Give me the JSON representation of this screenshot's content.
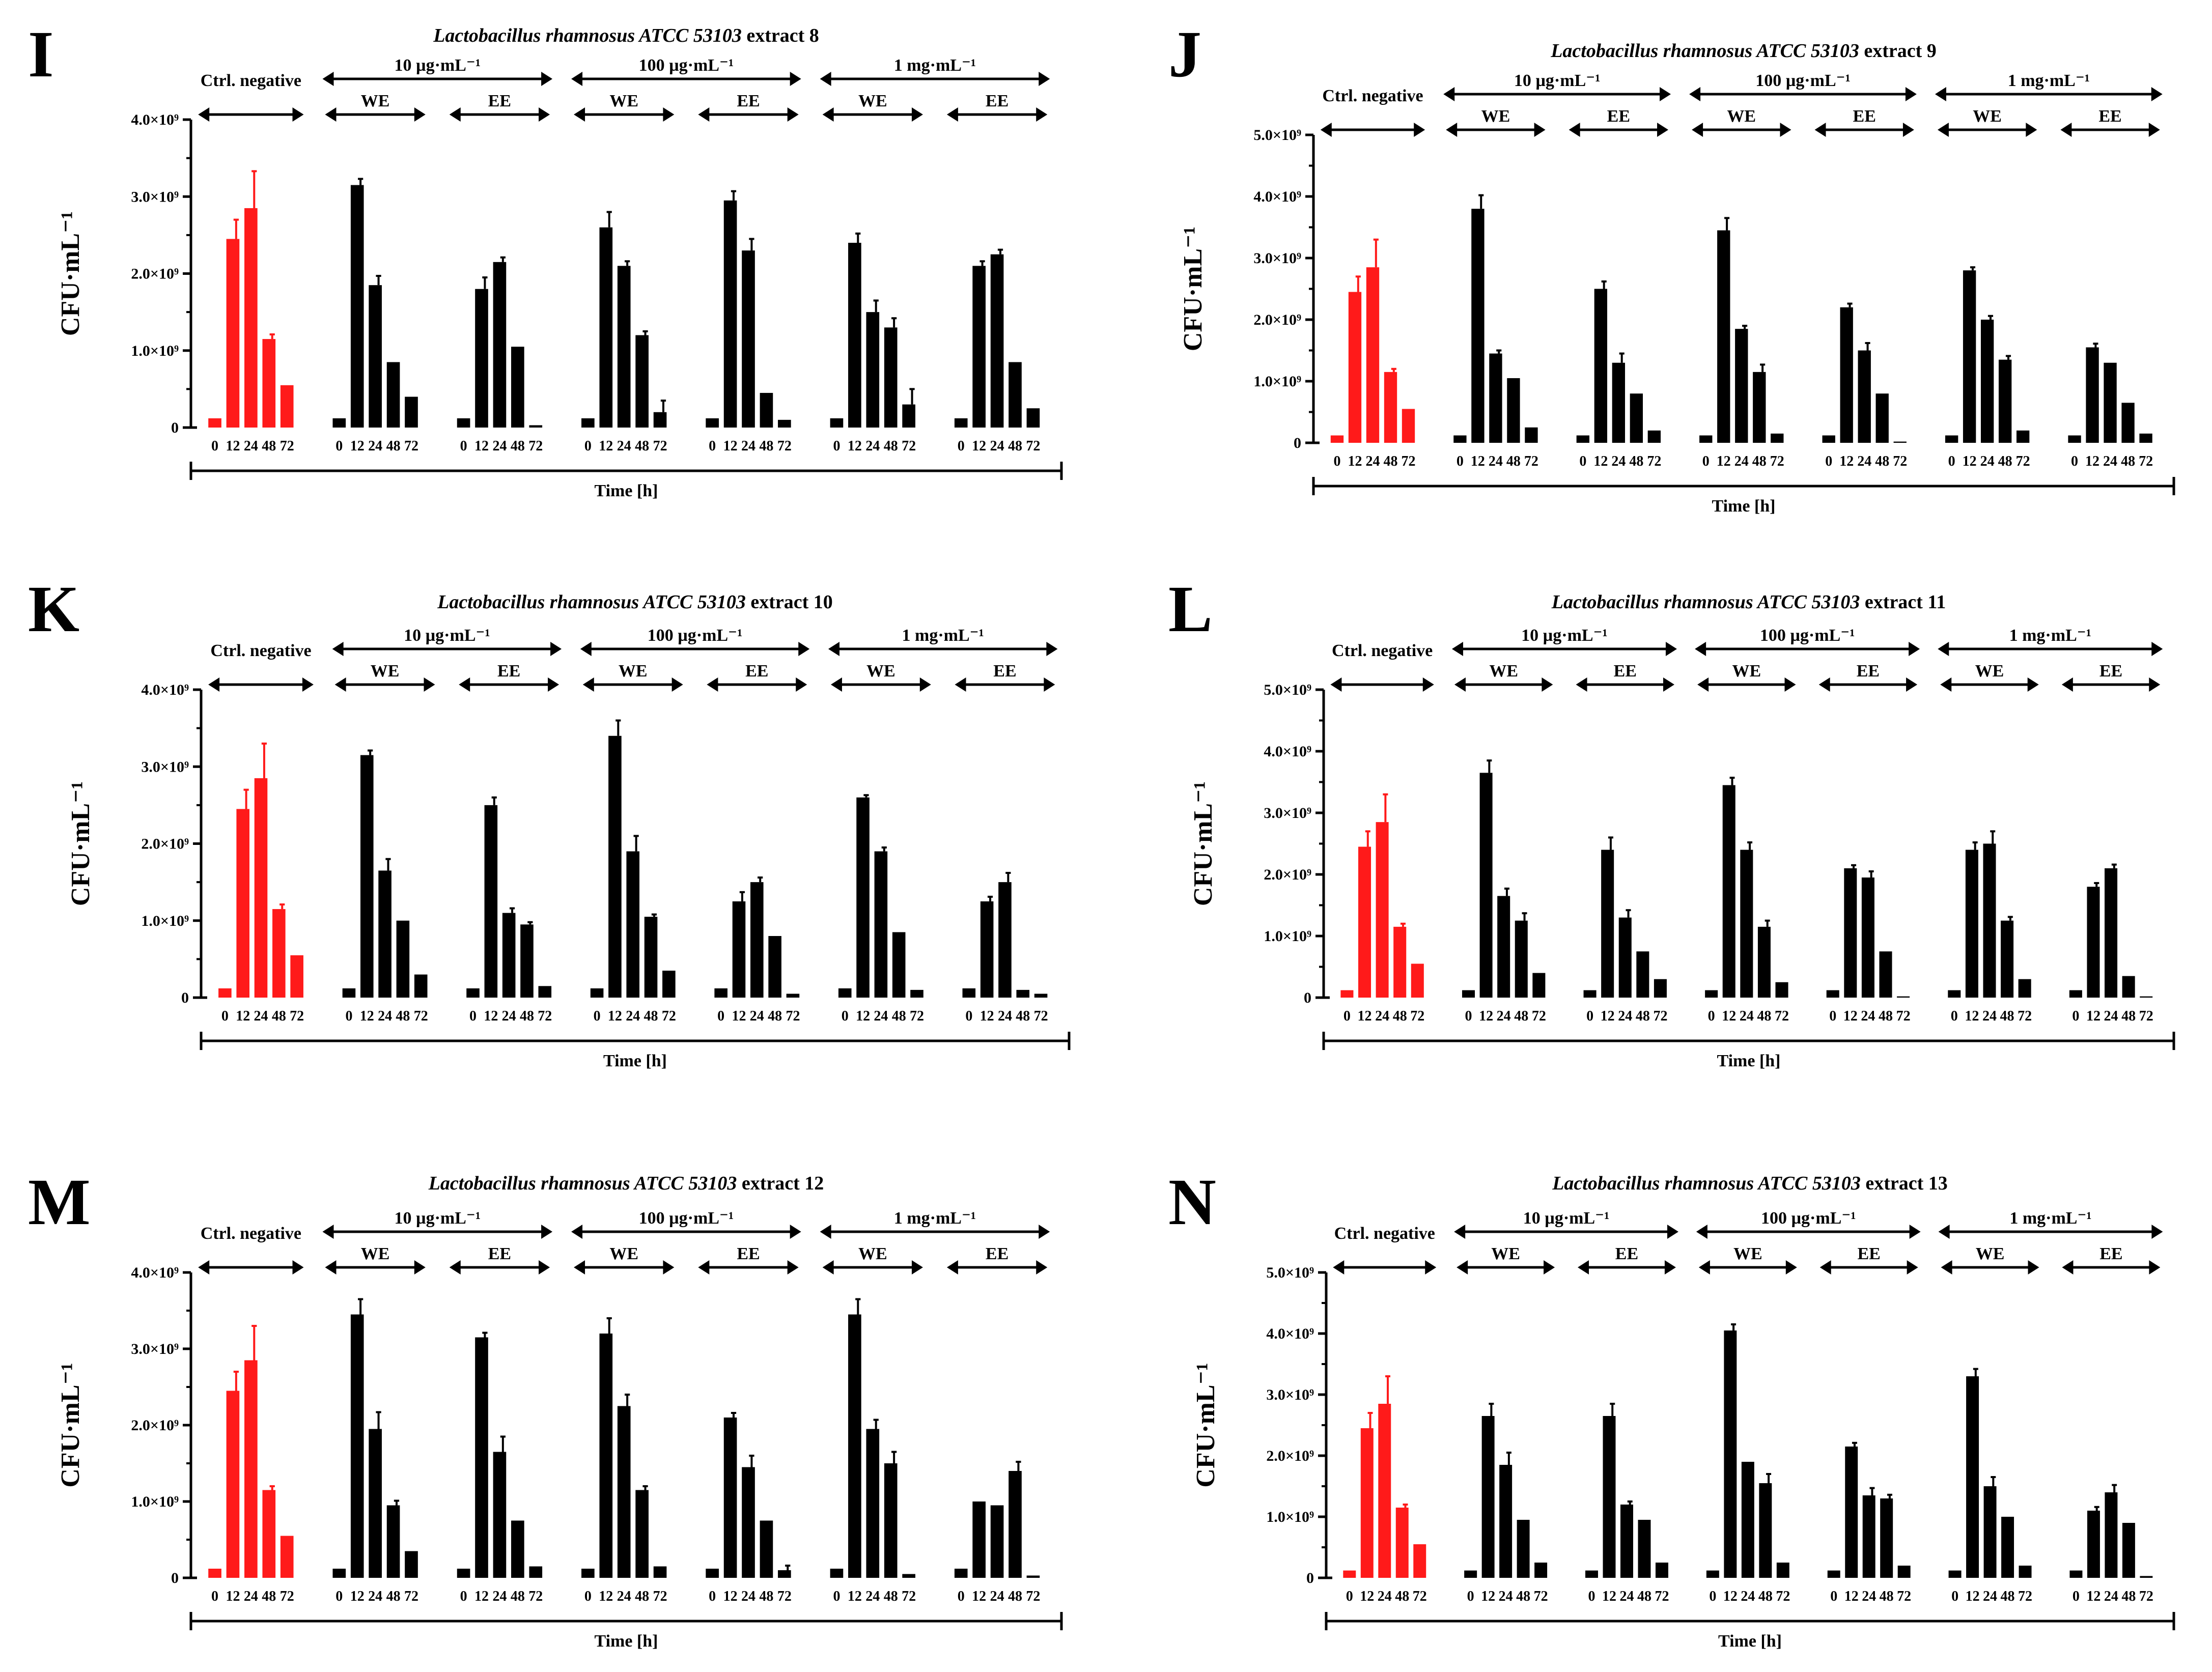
{
  "colors": {
    "control": "#ff1a1a",
    "treatment": "#000000"
  },
  "chart_data": [
    {
      "type": "bar",
      "panel": "I",
      "title_species": "Lactobacillus rhamnosus ATCC 53103",
      "title_extract": "extract 8",
      "ylabel": "CFU·mL⁻¹",
      "xlabel": "Time [h]",
      "ylim": [
        0,
        4000000000.0
      ],
      "yticks": [
        "0",
        "1.0×10⁹",
        "2.0×10⁹",
        "3.0×10⁹",
        "4.0×10⁹"
      ],
      "categories": [
        "0",
        "12",
        "24",
        "48",
        "72"
      ],
      "control_label": "Ctrl. negative",
      "groups": [
        "10 µg·mL⁻¹",
        "100 µg·mL⁻¹",
        "1 mg·mL⁻¹"
      ],
      "subgroups": [
        "WE",
        "EE"
      ],
      "series": [
        {
          "name": "Ctrl. negative",
          "values": [
            0.12,
            2.45,
            2.85,
            1.15,
            0.55
          ],
          "errors": [
            0,
            0.25,
            0.48,
            0.06,
            0
          ]
        },
        {
          "name": "10 µg·mL⁻¹ WE",
          "values": [
            0.12,
            3.15,
            1.85,
            0.85,
            0.4
          ],
          "errors": [
            0,
            0.08,
            0.12,
            0,
            0
          ]
        },
        {
          "name": "10 µg·mL⁻¹ EE",
          "values": [
            0.12,
            1.8,
            2.15,
            1.05,
            0.03
          ],
          "errors": [
            0,
            0.15,
            0.06,
            0,
            0
          ]
        },
        {
          "name": "100 µg·mL⁻¹ WE",
          "values": [
            0.12,
            2.6,
            2.1,
            1.2,
            0.2
          ],
          "errors": [
            0,
            0.2,
            0.06,
            0.05,
            0.15
          ]
        },
        {
          "name": "100 µg·mL⁻¹ EE",
          "values": [
            0.12,
            2.95,
            2.3,
            0.45,
            0.1
          ],
          "errors": [
            0,
            0.12,
            0.15,
            0,
            0
          ]
        },
        {
          "name": "1 mg·mL⁻¹ WE",
          "values": [
            0.12,
            2.4,
            1.5,
            1.3,
            0.3
          ],
          "errors": [
            0,
            0.12,
            0.15,
            0.12,
            0.2
          ]
        },
        {
          "name": "1 mg·mL⁻¹ EE",
          "values": [
            0.12,
            2.1,
            2.25,
            0.85,
            0.25
          ],
          "errors": [
            0,
            0.06,
            0.06,
            0,
            0
          ]
        }
      ]
    },
    {
      "type": "bar",
      "panel": "J",
      "title_species": "Lactobacillus rhamnosus ATCC 53103",
      "title_extract": "extract 9",
      "ylabel": "CFU·mL⁻¹",
      "xlabel": "Time [h]",
      "ylim": [
        0,
        5000000000.0
      ],
      "yticks": [
        "0",
        "1.0×10⁹",
        "2.0×10⁹",
        "3.0×10⁹",
        "4.0×10⁹",
        "5.0×10⁹"
      ],
      "categories": [
        "0",
        "12",
        "24",
        "48",
        "72"
      ],
      "control_label": "Ctrl. negative",
      "groups": [
        "10 µg·mL⁻¹",
        "100 µg·mL⁻¹",
        "1 mg·mL⁻¹"
      ],
      "subgroups": [
        "WE",
        "EE"
      ],
      "series": [
        {
          "name": "Ctrl. negative",
          "values": [
            0.12,
            2.45,
            2.85,
            1.15,
            0.55
          ],
          "errors": [
            0,
            0.25,
            0.45,
            0.05,
            0
          ]
        },
        {
          "name": "10 µg·mL⁻¹ WE",
          "values": [
            0.12,
            3.8,
            1.45,
            1.05,
            0.25
          ],
          "errors": [
            0,
            0.22,
            0.05,
            0,
            0
          ]
        },
        {
          "name": "10 µg·mL⁻¹ EE",
          "values": [
            0.12,
            2.5,
            1.3,
            0.8,
            0.2
          ],
          "errors": [
            0,
            0.12,
            0.15,
            0,
            0
          ]
        },
        {
          "name": "100 µg·mL⁻¹ WE",
          "values": [
            0.12,
            3.45,
            1.85,
            1.15,
            0.15
          ],
          "errors": [
            0,
            0.2,
            0.05,
            0.12,
            0
          ]
        },
        {
          "name": "100 µg·mL⁻¹ EE",
          "values": [
            0.12,
            2.2,
            1.5,
            0.8,
            0.02
          ],
          "errors": [
            0,
            0.06,
            0.12,
            0,
            0
          ]
        },
        {
          "name": "1 mg·mL⁻¹ WE",
          "values": [
            0.12,
            2.8,
            2.0,
            1.35,
            0.2
          ],
          "errors": [
            0,
            0.05,
            0.06,
            0.06,
            0
          ]
        },
        {
          "name": "1 mg·mL⁻¹ EE",
          "values": [
            0.12,
            1.55,
            1.3,
            0.65,
            0.15
          ],
          "errors": [
            0,
            0.06,
            0,
            0,
            0
          ]
        }
      ]
    },
    {
      "type": "bar",
      "panel": "K",
      "title_species": "Lactobacillus rhamnosus ATCC 53103",
      "title_extract": "extract 10",
      "ylabel": "CFU·mL⁻¹",
      "xlabel": "Time [h]",
      "ylim": [
        0,
        4000000000.0
      ],
      "yticks": [
        "0",
        "1.0×10⁹",
        "2.0×10⁹",
        "3.0×10⁹",
        "4.0×10⁹"
      ],
      "categories": [
        "0",
        "12",
        "24",
        "48",
        "72"
      ],
      "control_label": "Ctrl. negative",
      "groups": [
        "10 µg·mL⁻¹",
        "100 µg·mL⁻¹",
        "1 mg·mL⁻¹"
      ],
      "subgroups": [
        "WE",
        "EE"
      ],
      "series": [
        {
          "name": "Ctrl. negative",
          "values": [
            0.12,
            2.45,
            2.85,
            1.15,
            0.55
          ],
          "errors": [
            0,
            0.25,
            0.45,
            0.06,
            0
          ]
        },
        {
          "name": "10 µg·mL⁻¹ WE",
          "values": [
            0.12,
            3.15,
            1.65,
            1.0,
            0.3
          ],
          "errors": [
            0,
            0.06,
            0.15,
            0,
            0
          ]
        },
        {
          "name": "10 µg·mL⁻¹ EE",
          "values": [
            0.12,
            2.5,
            1.1,
            0.95,
            0.15
          ],
          "errors": [
            0,
            0.1,
            0.06,
            0.03,
            0
          ]
        },
        {
          "name": "100 µg·mL⁻¹ WE",
          "values": [
            0.12,
            3.4,
            1.9,
            1.05,
            0.35
          ],
          "errors": [
            0,
            0.2,
            0.2,
            0.03,
            0
          ]
        },
        {
          "name": "100 µg·mL⁻¹ EE",
          "values": [
            0.12,
            1.25,
            1.5,
            0.8,
            0.05
          ],
          "errors": [
            0,
            0.12,
            0.06,
            0,
            0
          ]
        },
        {
          "name": "1 mg·mL⁻¹ WE",
          "values": [
            0.12,
            2.6,
            1.9,
            0.85,
            0.1
          ],
          "errors": [
            0,
            0.03,
            0.05,
            0,
            0
          ]
        },
        {
          "name": "1 mg·mL⁻¹ EE",
          "values": [
            0.12,
            1.25,
            1.5,
            0.1,
            0.05
          ],
          "errors": [
            0,
            0.06,
            0.12,
            0,
            0
          ]
        }
      ]
    },
    {
      "type": "bar",
      "panel": "L",
      "title_species": "Lactobacillus rhamnosus ATCC 53103",
      "title_extract": "extract 11",
      "ylabel": "CFU·mL⁻¹",
      "xlabel": "Time [h]",
      "ylim": [
        0,
        5000000000.0
      ],
      "yticks": [
        "0",
        "1.0×10⁹",
        "2.0×10⁹",
        "3.0×10⁹",
        "4.0×10⁹",
        "5.0×10⁹"
      ],
      "categories": [
        "0",
        "12",
        "24",
        "48",
        "72"
      ],
      "control_label": "Ctrl. negative",
      "groups": [
        "10 µg·mL⁻¹",
        "100 µg·mL⁻¹",
        "1 mg·mL⁻¹"
      ],
      "subgroups": [
        "WE",
        "EE"
      ],
      "series": [
        {
          "name": "Ctrl. negative",
          "values": [
            0.12,
            2.45,
            2.85,
            1.15,
            0.55
          ],
          "errors": [
            0,
            0.25,
            0.45,
            0.05,
            0
          ]
        },
        {
          "name": "10 µg·mL⁻¹ WE",
          "values": [
            0.12,
            3.65,
            1.65,
            1.25,
            0.4
          ],
          "errors": [
            0,
            0.2,
            0.12,
            0.12,
            0
          ]
        },
        {
          "name": "10 µg·mL⁻¹ EE",
          "values": [
            0.12,
            2.4,
            1.3,
            0.75,
            0.3
          ],
          "errors": [
            0,
            0.2,
            0.12,
            0,
            0
          ]
        },
        {
          "name": "100 µg·mL⁻¹ WE",
          "values": [
            0.12,
            3.45,
            2.4,
            1.15,
            0.25
          ],
          "errors": [
            0,
            0.12,
            0.12,
            0.1,
            0
          ]
        },
        {
          "name": "100 µg·mL⁻¹ EE",
          "values": [
            0.12,
            2.1,
            1.95,
            0.75,
            0.02
          ],
          "errors": [
            0,
            0.05,
            0.1,
            0,
            0
          ]
        },
        {
          "name": "1 mg·mL⁻¹ WE",
          "values": [
            0.12,
            2.4,
            2.5,
            1.25,
            0.3
          ],
          "errors": [
            0,
            0.12,
            0.2,
            0.06,
            0
          ]
        },
        {
          "name": "1 mg·mL⁻¹ EE",
          "values": [
            0.12,
            1.8,
            2.1,
            0.35,
            0.02
          ],
          "errors": [
            0,
            0.06,
            0.06,
            0,
            0
          ]
        }
      ]
    },
    {
      "type": "bar",
      "panel": "M",
      "title_species": "Lactobacillus rhamnosus ATCC 53103",
      "title_extract": "extract 12",
      "ylabel": "CFU·mL⁻¹",
      "xlabel": "Time [h]",
      "ylim": [
        0,
        4000000000.0
      ],
      "yticks": [
        "0",
        "1.0×10⁹",
        "2.0×10⁹",
        "3.0×10⁹",
        "4.0×10⁹"
      ],
      "categories": [
        "0",
        "12",
        "24",
        "48",
        "72"
      ],
      "control_label": "Ctrl. negative",
      "groups": [
        "10 µg·mL⁻¹",
        "100 µg·mL⁻¹",
        "1 mg·mL⁻¹"
      ],
      "subgroups": [
        "WE",
        "EE"
      ],
      "series": [
        {
          "name": "Ctrl. negative",
          "values": [
            0.12,
            2.45,
            2.85,
            1.15,
            0.55
          ],
          "errors": [
            0,
            0.25,
            0.45,
            0.05,
            0
          ]
        },
        {
          "name": "10 µg·mL⁻¹ WE",
          "values": [
            0.12,
            3.45,
            1.95,
            0.95,
            0.35
          ],
          "errors": [
            0,
            0.2,
            0.22,
            0.06,
            0
          ]
        },
        {
          "name": "10 µg·mL⁻¹ EE",
          "values": [
            0.12,
            3.15,
            1.65,
            0.75,
            0.15
          ],
          "errors": [
            0,
            0.06,
            0.2,
            0,
            0
          ]
        },
        {
          "name": "100 µg·mL⁻¹ WE",
          "values": [
            0.12,
            3.2,
            2.25,
            1.15,
            0.15
          ],
          "errors": [
            0,
            0.2,
            0.15,
            0.05,
            0
          ]
        },
        {
          "name": "100 µg·mL⁻¹ EE",
          "values": [
            0.12,
            2.1,
            1.45,
            0.75,
            0.1
          ],
          "errors": [
            0,
            0.06,
            0.15,
            0,
            0.06
          ]
        },
        {
          "name": "1 mg·mL⁻¹ WE",
          "values": [
            0.12,
            3.45,
            1.95,
            1.5,
            0.05
          ],
          "errors": [
            0,
            0.2,
            0.12,
            0.15,
            0
          ]
        },
        {
          "name": "1 mg·mL⁻¹ EE",
          "values": [
            0.12,
            1.0,
            0.95,
            1.4,
            0.03
          ],
          "errors": [
            0,
            0,
            0,
            0.12,
            0
          ]
        }
      ]
    },
    {
      "type": "bar",
      "panel": "N",
      "title_species": "Lactobacillus rhamnosus ATCC 53103",
      "title_extract": "extract 13",
      "ylabel": "CFU·mL⁻¹",
      "xlabel": "Time [h]",
      "ylim": [
        0,
        5000000000.0
      ],
      "yticks": [
        "0",
        "1.0×10⁹",
        "2.0×10⁹",
        "3.0×10⁹",
        "4.0×10⁹",
        "5.0×10⁹"
      ],
      "categories": [
        "0",
        "12",
        "24",
        "48",
        "72"
      ],
      "control_label": "Ctrl. negative",
      "groups": [
        "10 µg·mL⁻¹",
        "100 µg·mL⁻¹",
        "1 mg·mL⁻¹"
      ],
      "subgroups": [
        "WE",
        "EE"
      ],
      "series": [
        {
          "name": "Ctrl. negative",
          "values": [
            0.12,
            2.45,
            2.85,
            1.15,
            0.55
          ],
          "errors": [
            0,
            0.25,
            0.45,
            0.05,
            0
          ]
        },
        {
          "name": "10 µg·mL⁻¹ WE",
          "values": [
            0.12,
            2.65,
            1.85,
            0.95,
            0.25
          ],
          "errors": [
            0,
            0.2,
            0.2,
            0,
            0
          ]
        },
        {
          "name": "10 µg·mL⁻¹ EE",
          "values": [
            0.12,
            2.65,
            1.2,
            0.95,
            0.25
          ],
          "errors": [
            0,
            0.2,
            0.05,
            0,
            0
          ]
        },
        {
          "name": "100 µg·mL⁻¹ WE",
          "values": [
            0.12,
            4.05,
            1.9,
            1.55,
            0.25
          ],
          "errors": [
            0,
            0.1,
            0,
            0.15,
            0
          ]
        },
        {
          "name": "100 µg·mL⁻¹ EE",
          "values": [
            0.12,
            2.15,
            1.35,
            1.3,
            0.2
          ],
          "errors": [
            0,
            0.06,
            0.12,
            0.06,
            0
          ]
        },
        {
          "name": "1 mg·mL⁻¹ WE",
          "values": [
            0.12,
            3.3,
            1.5,
            1.0,
            0.2
          ],
          "errors": [
            0,
            0.12,
            0.15,
            0,
            0
          ]
        },
        {
          "name": "1 mg·mL⁻¹ EE",
          "values": [
            0.12,
            1.1,
            1.4,
            0.9,
            0.03
          ],
          "errors": [
            0,
            0.06,
            0.12,
            0,
            0
          ]
        }
      ]
    }
  ]
}
